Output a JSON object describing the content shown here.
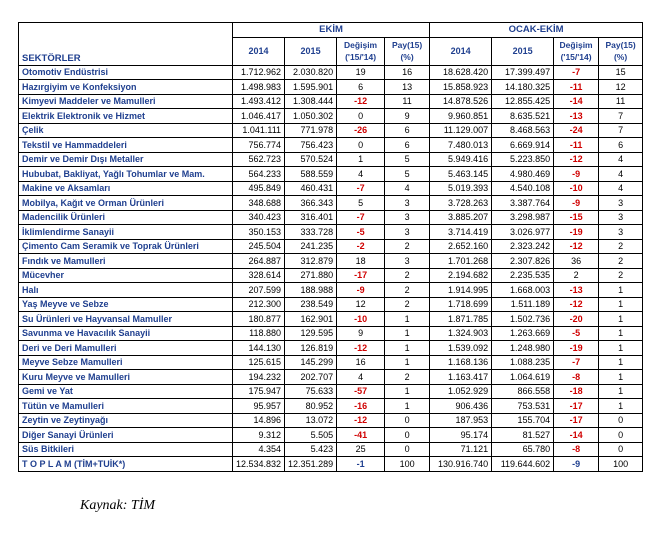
{
  "table": {
    "sector_header": "SEKTÖRLER",
    "group_1": "EKİM",
    "group_2": "OCAK-EKİM",
    "col_2014": "2014",
    "col_2015": "2015",
    "col_change": "Değişim",
    "col_change_sub": "('15/'14)",
    "col_share": "Pay(15)",
    "col_share_sub": "(%)",
    "rows": [
      {
        "sector": "Otomotiv Endüstrisi",
        "ekim_2014": "1.712.962",
        "ekim_2015": "2.030.820",
        "ekim_change": "19",
        "ekim_share": "16",
        "oe_2014": "18.628.420",
        "oe_2015": "17.399.497",
        "oe_change": "-7",
        "oe_share": "15"
      },
      {
        "sector": "Hazırgiyim ve Konfeksiyon",
        "ekim_2014": "1.498.983",
        "ekim_2015": "1.595.901",
        "ekim_change": "6",
        "ekim_share": "13",
        "oe_2014": "15.858.923",
        "oe_2015": "14.180.325",
        "oe_change": "-11",
        "oe_share": "12"
      },
      {
        "sector": "Kimyevi Maddeler ve Mamulleri",
        "ekim_2014": "1.493.412",
        "ekim_2015": "1.308.444",
        "ekim_change": "-12",
        "ekim_share": "11",
        "oe_2014": "14.878.526",
        "oe_2015": "12.855.425",
        "oe_change": "-14",
        "oe_share": "11"
      },
      {
        "sector": "Elektrik Elektronik ve Hizmet",
        "ekim_2014": "1.046.417",
        "ekim_2015": "1.050.302",
        "ekim_change": "0",
        "ekim_share": "9",
        "oe_2014": "9.960.851",
        "oe_2015": "8.635.521",
        "oe_change": "-13",
        "oe_share": "7"
      },
      {
        "sector": "Çelik",
        "ekim_2014": "1.041.111",
        "ekim_2015": "771.978",
        "ekim_change": "-26",
        "ekim_share": "6",
        "oe_2014": "11.129.007",
        "oe_2015": "8.468.563",
        "oe_change": "-24",
        "oe_share": "7"
      },
      {
        "sector": "Tekstil ve Hammaddeleri",
        "ekim_2014": "756.774",
        "ekim_2015": "756.423",
        "ekim_change": "0",
        "ekim_share": "6",
        "oe_2014": "7.480.013",
        "oe_2015": "6.669.914",
        "oe_change": "-11",
        "oe_share": "6"
      },
      {
        "sector": "Demir ve Demir Dışı Metaller",
        "ekim_2014": "562.723",
        "ekim_2015": "570.524",
        "ekim_change": "1",
        "ekim_share": "5",
        "oe_2014": "5.949.416",
        "oe_2015": "5.223.850",
        "oe_change": "-12",
        "oe_share": "4"
      },
      {
        "sector": "Hububat, Bakliyat, Yağlı Tohumlar ve Mam.",
        "ekim_2014": "564.233",
        "ekim_2015": "588.559",
        "ekim_change": "4",
        "ekim_share": "5",
        "oe_2014": "5.463.145",
        "oe_2015": "4.980.469",
        "oe_change": "-9",
        "oe_share": "4"
      },
      {
        "sector": "Makine ve Aksamları",
        "ekim_2014": "495.849",
        "ekim_2015": "460.431",
        "ekim_change": "-7",
        "ekim_share": "4",
        "oe_2014": "5.019.393",
        "oe_2015": "4.540.108",
        "oe_change": "-10",
        "oe_share": "4"
      },
      {
        "sector": "Mobilya, Kağıt ve Orman Ürünleri",
        "ekim_2014": "348.688",
        "ekim_2015": "366.343",
        "ekim_change": "5",
        "ekim_share": "3",
        "oe_2014": "3.728.263",
        "oe_2015": "3.387.764",
        "oe_change": "-9",
        "oe_share": "3"
      },
      {
        "sector": "Madencilik Ürünleri",
        "ekim_2014": "340.423",
        "ekim_2015": "316.401",
        "ekim_change": "-7",
        "ekim_share": "3",
        "oe_2014": "3.885.207",
        "oe_2015": "3.298.987",
        "oe_change": "-15",
        "oe_share": "3"
      },
      {
        "sector": "İklimlendirme Sanayii",
        "ekim_2014": "350.153",
        "ekim_2015": "333.728",
        "ekim_change": "-5",
        "ekim_share": "3",
        "oe_2014": "3.714.419",
        "oe_2015": "3.026.977",
        "oe_change": "-19",
        "oe_share": "3"
      },
      {
        "sector": "Çimento Cam Seramik ve Toprak Ürünleri",
        "ekim_2014": "245.504",
        "ekim_2015": "241.235",
        "ekim_change": "-2",
        "ekim_share": "2",
        "oe_2014": "2.652.160",
        "oe_2015": "2.323.242",
        "oe_change": "-12",
        "oe_share": "2"
      },
      {
        "sector": "Fındık ve Mamulleri",
        "ekim_2014": "264.887",
        "ekim_2015": "312.879",
        "ekim_change": "18",
        "ekim_share": "3",
        "oe_2014": "1.701.268",
        "oe_2015": "2.307.826",
        "oe_change": "36",
        "oe_share": "2"
      },
      {
        "sector": "Mücevher",
        "ekim_2014": "328.614",
        "ekim_2015": "271.880",
        "ekim_change": "-17",
        "ekim_share": "2",
        "oe_2014": "2.194.682",
        "oe_2015": "2.235.535",
        "oe_change": "2",
        "oe_share": "2"
      },
      {
        "sector": "Halı",
        "ekim_2014": "207.599",
        "ekim_2015": "188.988",
        "ekim_change": "-9",
        "ekim_share": "2",
        "oe_2014": "1.914.995",
        "oe_2015": "1.668.003",
        "oe_change": "-13",
        "oe_share": "1"
      },
      {
        "sector": "Yaş Meyve ve Sebze",
        "ekim_2014": "212.300",
        "ekim_2015": "238.549",
        "ekim_change": "12",
        "ekim_share": "2",
        "oe_2014": "1.718.699",
        "oe_2015": "1.511.189",
        "oe_change": "-12",
        "oe_share": "1"
      },
      {
        "sector": "Su Ürünleri ve Hayvansal Mamuller",
        "ekim_2014": "180.877",
        "ekim_2015": "162.901",
        "ekim_change": "-10",
        "ekim_share": "1",
        "oe_2014": "1.871.785",
        "oe_2015": "1.502.736",
        "oe_change": "-20",
        "oe_share": "1"
      },
      {
        "sector": "Savunma ve Havacılık Sanayii",
        "ekim_2014": "118.880",
        "ekim_2015": "129.595",
        "ekim_change": "9",
        "ekim_share": "1",
        "oe_2014": "1.324.903",
        "oe_2015": "1.263.669",
        "oe_change": "-5",
        "oe_share": "1"
      },
      {
        "sector": "Deri ve Deri Mamulleri",
        "ekim_2014": "144.130",
        "ekim_2015": "126.819",
        "ekim_change": "-12",
        "ekim_share": "1",
        "oe_2014": "1.539.092",
        "oe_2015": "1.248.980",
        "oe_change": "-19",
        "oe_share": "1"
      },
      {
        "sector": "Meyve Sebze Mamulleri",
        "ekim_2014": "125.615",
        "ekim_2015": "145.299",
        "ekim_change": "16",
        "ekim_share": "1",
        "oe_2014": "1.168.136",
        "oe_2015": "1.088.235",
        "oe_change": "-7",
        "oe_share": "1"
      },
      {
        "sector": "Kuru Meyve ve Mamulleri",
        "ekim_2014": "194.232",
        "ekim_2015": "202.707",
        "ekim_change": "4",
        "ekim_share": "2",
        "oe_2014": "1.163.417",
        "oe_2015": "1.064.619",
        "oe_change": "-8",
        "oe_share": "1"
      },
      {
        "sector": "Gemi ve Yat",
        "ekim_2014": "175.947",
        "ekim_2015": "75.633",
        "ekim_change": "-57",
        "ekim_share": "1",
        "oe_2014": "1.052.929",
        "oe_2015": "866.558",
        "oe_change": "-18",
        "oe_share": "1"
      },
      {
        "sector": "Tütün ve Mamulleri",
        "ekim_2014": "95.957",
        "ekim_2015": "80.952",
        "ekim_change": "-16",
        "ekim_share": "1",
        "oe_2014": "906.436",
        "oe_2015": "753.531",
        "oe_change": "-17",
        "oe_share": "1"
      },
      {
        "sector": "Zeytin ve Zeytinyağı",
        "ekim_2014": "14.896",
        "ekim_2015": "13.072",
        "ekim_change": "-12",
        "ekim_share": "0",
        "oe_2014": "187.953",
        "oe_2015": "155.704",
        "oe_change": "-17",
        "oe_share": "0"
      },
      {
        "sector": "Diğer Sanayi Ürünleri",
        "ekim_2014": "9.312",
        "ekim_2015": "5.505",
        "ekim_change": "-41",
        "ekim_share": "0",
        "oe_2014": "95.174",
        "oe_2015": "81.527",
        "oe_change": "-14",
        "oe_share": "0"
      },
      {
        "sector": "Süs Bitkileri",
        "ekim_2014": "4.354",
        "ekim_2015": "5.423",
        "ekim_change": "25",
        "ekim_share": "0",
        "oe_2014": "71.121",
        "oe_2015": "65.780",
        "oe_change": "-8",
        "oe_share": "0"
      }
    ],
    "total": {
      "sector": "T O P L A M (TİM+TUİK*)",
      "ekim_2014": "12.534.832",
      "ekim_2015": "12.351.289",
      "ekim_change": "-1",
      "ekim_share": "100",
      "oe_2014": "130.916.740",
      "oe_2015": "119.644.602",
      "oe_change": "-9",
      "oe_share": "100"
    }
  },
  "source": "Kaynak: TİM",
  "colors": {
    "header_text": "#1f3f8f",
    "negative": "#d00000",
    "border": "#000000"
  }
}
